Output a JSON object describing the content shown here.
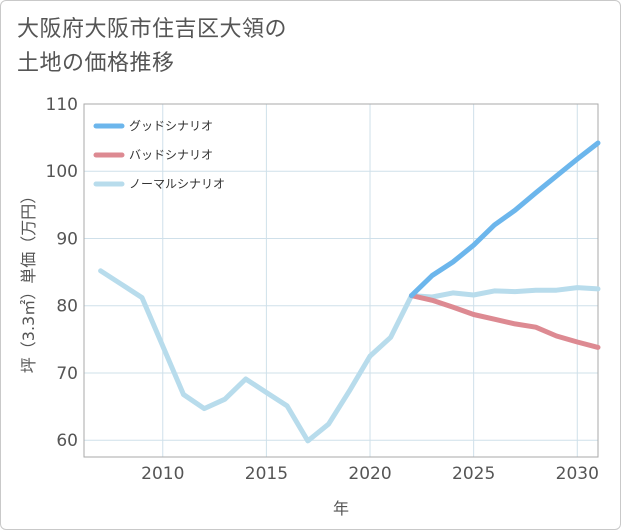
{
  "page": {
    "title": "大阪府大阪市住吉区大領の\n土地の価格推移"
  },
  "chart_data": {
    "type": "line",
    "title": "大阪府大阪市住吉区大領の土地の価格推移",
    "xlabel": "年",
    "ylabel": "坪（3.3㎡）単価（万円）",
    "xlim": [
      2006.2,
      2031
    ],
    "ylim": [
      57.5,
      110
    ],
    "x_ticks": [
      2010,
      2015,
      2020,
      2025,
      2030
    ],
    "y_ticks": [
      60,
      70,
      80,
      90,
      100,
      110
    ],
    "x_ticks_display": [
      "2010",
      "2015",
      "2020",
      "2025",
      "2030"
    ],
    "y_ticks_display": [
      "60",
      "70",
      "80",
      "90",
      "100",
      "110"
    ],
    "grid": true,
    "legend_position": "top-left",
    "series": [
      {
        "name": "グッドシナリオ",
        "color": "#6cb6ec",
        "x": [
          2022,
          2023,
          2024,
          2025,
          2026,
          2027,
          2028,
          2029,
          2030,
          2031
        ],
        "values": [
          81.5,
          84.5,
          86.5,
          89,
          92,
          94.2,
          96.8,
          99.3,
          101.8,
          104.2
        ]
      },
      {
        "name": "バッドシナリオ",
        "color": "#dd8a92",
        "x": [
          2022,
          2023,
          2024,
          2025,
          2026,
          2027,
          2028,
          2029,
          2030,
          2031
        ],
        "values": [
          81.5,
          80.8,
          79.8,
          78.7,
          78,
          77.3,
          76.8,
          75.5,
          74.6,
          73.8
        ]
      },
      {
        "name": "ノーマルシナリオ",
        "color": "#b8dcec",
        "x": [
          2007,
          2008,
          2009,
          2010,
          2011,
          2012,
          2013,
          2014,
          2015,
          2016,
          2017,
          2018,
          2019,
          2020,
          2021,
          2022,
          2023,
          2024,
          2025,
          2026,
          2027,
          2028,
          2029,
          2030,
          2031
        ],
        "values": [
          85.2,
          83.2,
          81.2,
          74,
          66.8,
          64.7,
          66.1,
          69.1,
          67.1,
          65.1,
          59.9,
          62.4,
          67.3,
          72.5,
          75.3,
          81.5,
          81.3,
          81.9,
          81.6,
          82.2,
          82.1,
          82.3,
          82.3,
          82.7,
          82.5
        ]
      }
    ]
  }
}
